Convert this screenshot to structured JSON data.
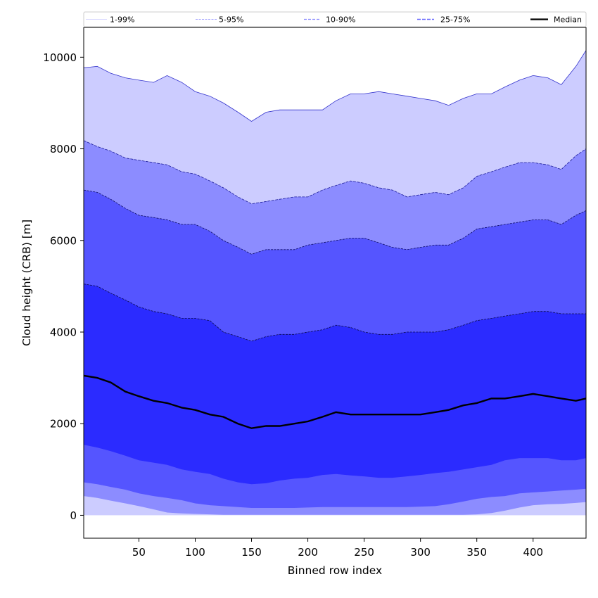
{
  "chart_data": {
    "type": "area",
    "title": "",
    "xlabel": "Binned row index",
    "ylabel": "Cloud height (CRB) [m]",
    "xlim": [
      1,
      447
    ],
    "ylim": [
      -500,
      10650
    ],
    "xticks": [
      50,
      100,
      150,
      200,
      250,
      300,
      350,
      400
    ],
    "yticks": [
      0,
      2000,
      4000,
      6000,
      8000,
      10000
    ],
    "grid": false,
    "legend_position": "top",
    "legend": [
      {
        "label": "1-99%",
        "color": "#ccccff",
        "style": "solid-thin"
      },
      {
        "label": "5-95%",
        "color": "#8c8cff",
        "style": "dashed-thin"
      },
      {
        "label": "10-90%",
        "color": "#5555ff",
        "style": "dashed"
      },
      {
        "label": "25-75%",
        "color": "#2b2bff",
        "style": "dashed-medium"
      },
      {
        "label": "Median",
        "color": "#000000",
        "style": "solid-thick"
      }
    ],
    "x": [
      1,
      13,
      25,
      38,
      50,
      63,
      75,
      88,
      100,
      113,
      125,
      138,
      150,
      163,
      175,
      188,
      200,
      213,
      225,
      238,
      250,
      263,
      275,
      288,
      300,
      313,
      325,
      338,
      350,
      363,
      375,
      388,
      400,
      413,
      425,
      438,
      447
    ],
    "series": [
      {
        "name": "p1",
        "values": [
          0,
          0,
          0,
          0,
          0,
          0,
          0,
          0,
          0,
          0,
          0,
          0,
          0,
          0,
          0,
          0,
          0,
          0,
          0,
          0,
          0,
          0,
          0,
          0,
          0,
          0,
          0,
          0,
          0,
          0,
          0,
          0,
          0,
          0,
          0,
          0,
          0
        ]
      },
      {
        "name": "p5",
        "values": [
          420,
          380,
          320,
          260,
          200,
          130,
          60,
          40,
          30,
          20,
          10,
          10,
          10,
          10,
          10,
          10,
          10,
          10,
          10,
          10,
          10,
          10,
          10,
          10,
          10,
          10,
          10,
          10,
          20,
          50,
          100,
          170,
          220,
          240,
          250,
          270,
          290
        ]
      },
      {
        "name": "p10",
        "values": [
          720,
          680,
          620,
          560,
          480,
          420,
          380,
          330,
          260,
          220,
          200,
          180,
          160,
          160,
          160,
          160,
          170,
          180,
          180,
          180,
          180,
          180,
          180,
          180,
          190,
          200,
          240,
          300,
          360,
          400,
          420,
          480,
          500,
          520,
          540,
          560,
          580
        ]
      },
      {
        "name": "p25",
        "values": [
          1540,
          1480,
          1400,
          1300,
          1200,
          1150,
          1100,
          1000,
          950,
          900,
          800,
          720,
          680,
          700,
          760,
          800,
          820,
          880,
          900,
          870,
          850,
          820,
          820,
          850,
          880,
          920,
          950,
          1000,
          1050,
          1100,
          1200,
          1250,
          1250,
          1250,
          1200,
          1200,
          1250
        ]
      },
      {
        "name": "median",
        "values": [
          3050,
          3000,
          2900,
          2700,
          2600,
          2500,
          2450,
          2350,
          2300,
          2200,
          2150,
          2000,
          1900,
          1950,
          1950,
          2000,
          2050,
          2150,
          2250,
          2200,
          2200,
          2200,
          2200,
          2200,
          2200,
          2250,
          2300,
          2400,
          2450,
          2550,
          2550,
          2600,
          2650,
          2600,
          2550,
          2500,
          2550
        ]
      },
      {
        "name": "p75",
        "values": [
          5050,
          5000,
          4850,
          4700,
          4550,
          4450,
          4400,
          4300,
          4300,
          4250,
          4000,
          3900,
          3800,
          3900,
          3950,
          3950,
          4000,
          4050,
          4150,
          4100,
          4000,
          3950,
          3950,
          4000,
          4000,
          4000,
          4050,
          4150,
          4250,
          4300,
          4350,
          4400,
          4450,
          4450,
          4400,
          4400,
          4400
        ]
      },
      {
        "name": "p90",
        "values": [
          7100,
          7050,
          6900,
          6700,
          6550,
          6500,
          6450,
          6350,
          6350,
          6200,
          6000,
          5850,
          5700,
          5800,
          5800,
          5800,
          5900,
          5950,
          6000,
          6050,
          6050,
          5950,
          5850,
          5800,
          5850,
          5900,
          5900,
          6050,
          6250,
          6300,
          6350,
          6400,
          6450,
          6450,
          6350,
          6550,
          6650
        ]
      },
      {
        "name": "p95",
        "values": [
          8180,
          8050,
          7950,
          7800,
          7750,
          7700,
          7650,
          7500,
          7450,
          7300,
          7150,
          6950,
          6800,
          6850,
          6900,
          6950,
          6950,
          7100,
          7200,
          7300,
          7250,
          7150,
          7100,
          6950,
          7000,
          7050,
          7000,
          7150,
          7400,
          7500,
          7600,
          7700,
          7700,
          7650,
          7550,
          7850,
          8000
        ]
      },
      {
        "name": "p99",
        "values": [
          9770,
          9800,
          9650,
          9550,
          9500,
          9450,
          9600,
          9450,
          9250,
          9150,
          9000,
          8800,
          8600,
          8800,
          8850,
          8850,
          8850,
          8850,
          9050,
          9200,
          9200,
          9250,
          9200,
          9150,
          9100,
          9050,
          8950,
          9100,
          9200,
          9200,
          9350,
          9500,
          9600,
          9550,
          9400,
          9800,
          10150
        ]
      }
    ],
    "bands": [
      {
        "label": "1-99%",
        "lower": "p1",
        "upper": "p99",
        "fill": "#ccccff",
        "edge": "#3333cc"
      },
      {
        "label": "5-95%",
        "lower": "p5",
        "upper": "p95",
        "fill": "#8c8cff",
        "edge": "#1a1a99"
      },
      {
        "label": "10-90%",
        "lower": "p10",
        "upper": "p90",
        "fill": "#5555ff",
        "edge": "#0d0d66"
      },
      {
        "label": "25-75%",
        "lower": "p25",
        "upper": "p75",
        "fill": "#2b2bff",
        "edge": "#0a0a4d"
      }
    ],
    "median_color": "#000000"
  }
}
